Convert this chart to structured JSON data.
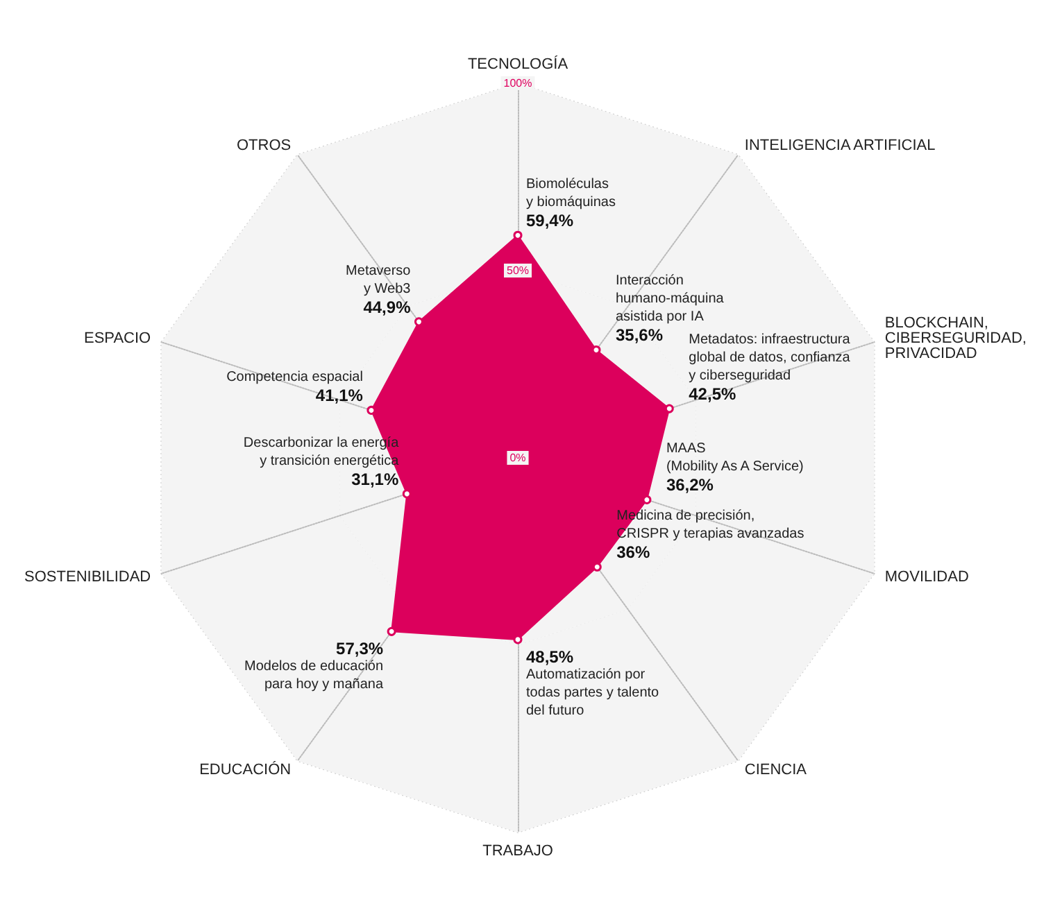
{
  "chart_data": {
    "type": "radar",
    "categories": [
      "TECNOLOGÍA",
      "INTELIGENCIA ARTIFICIAL",
      "BLOCKCHAIN,\nCIBERSEGURIDAD,\nPRIVACIDAD",
      "MOVILIDAD",
      "CIENCIA",
      "TRABAJO",
      "EDUCACIÓN",
      "SOSTENIBILIDAD",
      "ESPACIO",
      "OTROS"
    ],
    "series": [
      {
        "color": "#dc005c",
        "values": [
          59.4,
          35.6,
          42.5,
          36.2,
          36,
          48.5,
          57.3,
          31.1,
          41.1,
          44.9
        ]
      }
    ],
    "value_labels": [
      "59,4%",
      "35,6%",
      "42,5%",
      "36,2%",
      "36%",
      "48,5%",
      "57,3%",
      "31,1%",
      "41,1%",
      "44,9%"
    ],
    "annotations": [
      {
        "text": "Biomoléculas\ny biomáquinas",
        "x": "TECNOLOGÍA"
      },
      {
        "text": "Interacción\nhumano-máquina\nasistida por IA",
        "x": "INTELIGENCIA ARTIFICIAL"
      },
      {
        "text": "Metadatos: infraestructura\nglobal de datos, confianza\ny ciberseguridad",
        "x": "BLOCKCHAIN,\nCIBERSEGURIDAD,\nPRIVACIDAD"
      },
      {
        "text": "MAAS\n(Mobility As A Service)",
        "x": "MOVILIDAD"
      },
      {
        "text": "Medicina de precisión,\nCRISPR y terapias avanzadas",
        "x": "CIENCIA"
      },
      {
        "text": "Automatización por\ntodas partes y talento\ndel futuro",
        "x": "TRABAJO"
      },
      {
        "text": "Modelos de educación\npara hoy y mañana",
        "x": "EDUCACIÓN"
      },
      {
        "text": "Descarbonizar la energía\ny transición energética",
        "x": "SOSTENIBILIDAD"
      },
      {
        "text": "Competencia espacial",
        "x": "ESPACIO"
      },
      {
        "text": "Metaverso\ny Web3",
        "x": "OTROS"
      }
    ],
    "ylim": [
      0,
      100
    ],
    "yticks": [
      {
        "value": 0,
        "label": "0%"
      },
      {
        "value": 50,
        "label": "50%"
      },
      {
        "value": 100,
        "label": "100%"
      }
    ],
    "grid": true,
    "marker": "circle"
  }
}
